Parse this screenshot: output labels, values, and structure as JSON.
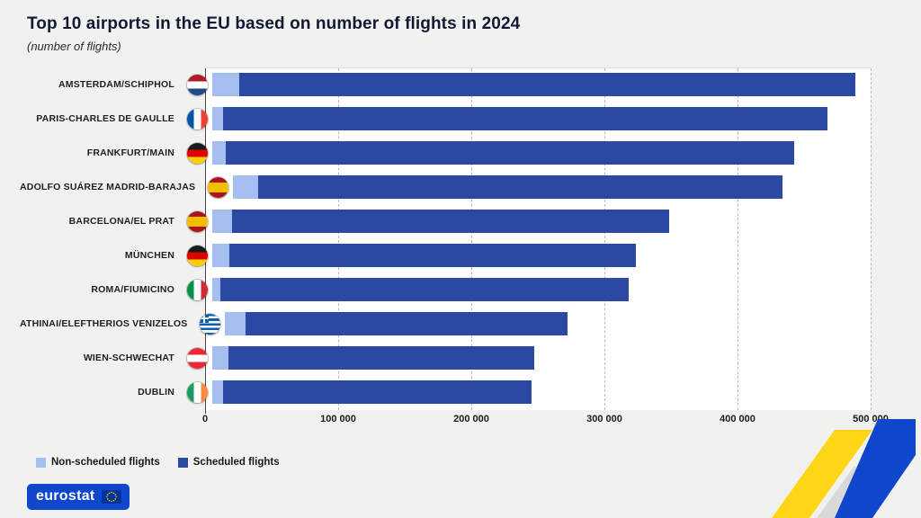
{
  "title": "Top 10 airports in the EU based on number of flights in 2024",
  "subtitle": "(number of flights)",
  "legend": [
    {
      "label": "Non-scheduled flights",
      "color": "#a6bff1"
    },
    {
      "label": "Scheduled flights",
      "color": "#2b49a3"
    }
  ],
  "footer": {
    "logo_text": "eurostat"
  },
  "icons": {
    "flags": "circular country flag icons per airport",
    "ribbon": "yellow-blue decorative ribbon",
    "eu_flag": "EU flag emblem in eurostat logo"
  },
  "colors": {
    "scheduled": "#2b49a3",
    "non_scheduled": "#a6bff1",
    "background": "#f1f1f0",
    "plot_background": "#ffffff",
    "logo_blue": "#0E47CB",
    "ribbon_yellow": "#FFD617",
    "ribbon_blue": "#0E47CB"
  },
  "chart_data": {
    "type": "bar",
    "orientation": "horizontal",
    "stacked": true,
    "title": "Top 10 airports in the EU based on number of flights in 2024",
    "subtitle": "(number of flights)",
    "categories": [
      "AMSTERDAM/SCHIPHOL",
      "PARIS-CHARLES DE GAULLE",
      "FRANKFURT/MAIN",
      "ADOLFO SUÁREZ MADRID-BARAJAS",
      "BARCELONA/EL PRAT",
      "MÜNCHEN",
      "ROMA/FIUMICINO",
      "ATHINAI/ELEFTHERIOS VENIZELOS",
      "WIEN-SCHWECHAT",
      "DUBLIN"
    ],
    "flags": [
      "netherlands",
      "france",
      "germany",
      "spain",
      "spain",
      "germany",
      "italy",
      "greece",
      "austria",
      "ireland"
    ],
    "series": [
      {
        "name": "Non-scheduled flights",
        "color": "#a6bff1",
        "values": [
          20000,
          8000,
          10000,
          19000,
          15000,
          13000,
          6000,
          15000,
          12000,
          8000
        ]
      },
      {
        "name": "Scheduled flights",
        "color": "#2b49a3",
        "values": [
          463000,
          454000,
          427000,
          394000,
          328000,
          305000,
          307000,
          242000,
          230000,
          232000
        ]
      }
    ],
    "totals": [
      483000,
      462000,
      437000,
      413000,
      343000,
      318000,
      313000,
      257000,
      242000,
      240000
    ],
    "xlim": [
      0,
      500000
    ],
    "x_ticks": [
      "0",
      "100 000",
      "200 000",
      "300 000",
      "400 000",
      "500 000"
    ],
    "gridlines": "dashed-vertical",
    "legend_position": "bottom-left"
  }
}
